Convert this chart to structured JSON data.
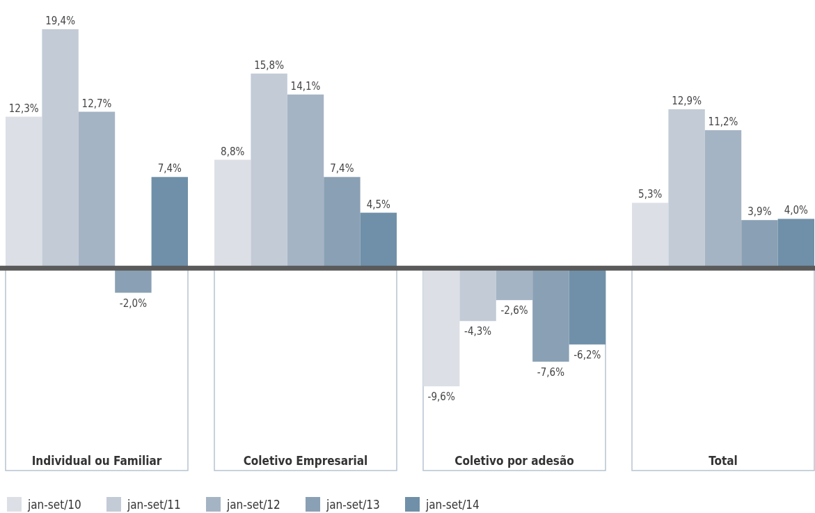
{
  "chart_data": {
    "type": "bar",
    "categories": [
      "Individual ou Familiar",
      "Coletivo Empresarial",
      "Coletivo por adesão",
      "Total"
    ],
    "series": [
      {
        "name": "jan-set/10",
        "color": "#dcdfe6",
        "values": [
          12.3,
          8.8,
          -9.6,
          5.3
        ],
        "value_labels": [
          "12,3%",
          "8,8%",
          "-9,6%",
          "5,3%"
        ]
      },
      {
        "name": "jan-set/11",
        "color": "#c2cbd6",
        "values": [
          19.4,
          15.8,
          -4.3,
          12.9
        ],
        "value_labels": [
          "19,4%",
          "15,8%",
          "-4,3%",
          "12,9%"
        ]
      },
      {
        "name": "jan-set/12",
        "color": "#a5b4c4",
        "values": [
          12.7,
          14.1,
          -2.6,
          11.2
        ],
        "value_labels": [
          "12,7%",
          "14,1%",
          "-2,6%",
          "11,2%"
        ]
      },
      {
        "name": "jan-set/13",
        "color": "#8aa0b4",
        "values": [
          -2.0,
          7.4,
          -7.6,
          3.9
        ],
        "value_labels": [
          "-2,0%",
          "7,4%",
          "-7,6%",
          "3,9%"
        ]
      },
      {
        "name": "jan-set/14",
        "color": "#6f90a8",
        "values": [
          7.4,
          4.5,
          -6.2,
          4.0
        ],
        "value_labels": [
          "7,4%",
          "4,5%",
          "-6,2%",
          "4,0%"
        ]
      }
    ],
    "legend": "bottom"
  }
}
